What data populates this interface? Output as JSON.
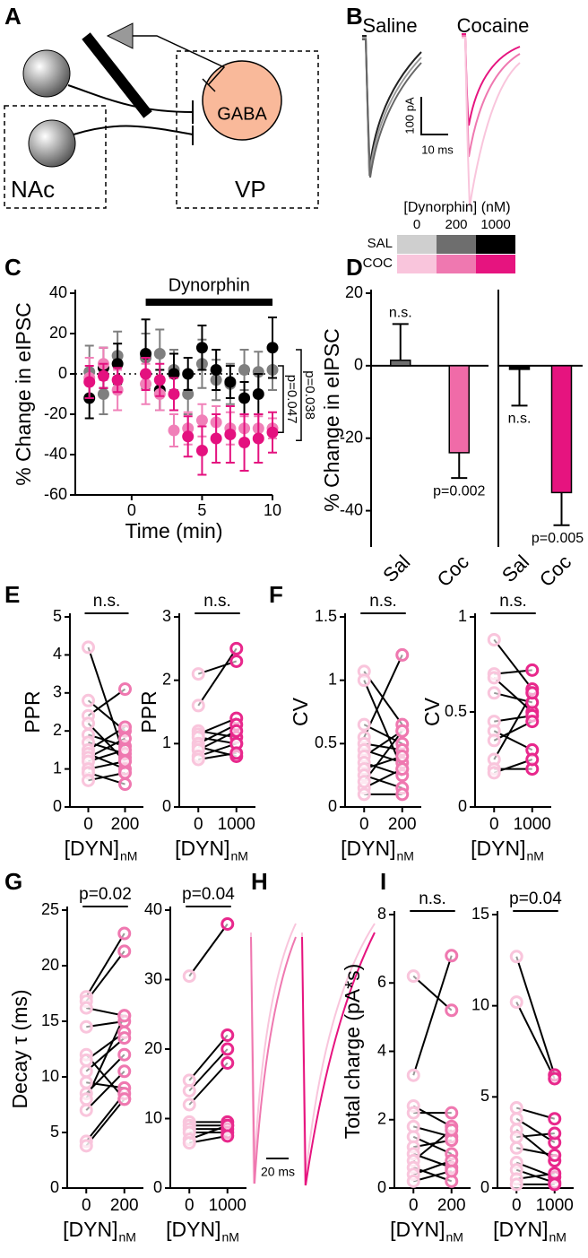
{
  "panel_letters": [
    "A",
    "B",
    "C",
    "D",
    "E",
    "F",
    "G",
    "H",
    "I"
  ],
  "diagram": {
    "gaba": "GABA",
    "nac": "NAc",
    "vp": "VP"
  },
  "traces": {
    "saline": "Saline",
    "cocaine": "Cocaine",
    "scale_y": "100 pA",
    "scale_x": "10 ms",
    "scale_h": "20 ms"
  },
  "legend_table": {
    "title": "[Dynorphin] (nM)",
    "columns": [
      "0",
      "200",
      "1000"
    ],
    "rows": [
      {
        "label": "SAL",
        "colors": [
          "#cfcfcf",
          "#6e6e6e",
          "#000000"
        ]
      },
      {
        "label": "COC",
        "colors": [
          "#f9c5dc",
          "#ef78b0",
          "#e6147f"
        ]
      }
    ]
  },
  "chart_data": [
    {
      "type": "scatter",
      "x_label": "Time (min)",
      "y_label": "% Change in eIPSC",
      "annotation": "Dynorphin",
      "p_values": [
        "p=0.047",
        "p=0.038"
      ],
      "x": [
        -3,
        -2,
        -1,
        1,
        2,
        3,
        4,
        5,
        6,
        7,
        8,
        9,
        10
      ],
      "xlim": [
        -4,
        10
      ],
      "xticks": [
        0,
        5,
        10
      ],
      "ylim": [
        -60,
        40
      ],
      "yticks": [
        -60,
        -40,
        -20,
        0,
        20,
        40
      ],
      "series": [
        {
          "color": "#7f7f7f",
          "values": [
            1,
            -10,
            9,
            8,
            10,
            2,
            -10,
            5,
            -3,
            -5,
            2,
            1,
            2
          ],
          "errors": [
            13,
            10,
            12,
            12,
            12,
            10,
            10,
            12,
            10,
            10,
            10,
            10,
            10
          ]
        },
        {
          "color": "#000000",
          "values": [
            -12,
            3,
            5,
            10,
            -8,
            0,
            0,
            13,
            2,
            -4,
            -12,
            -10,
            13
          ],
          "errors": [
            10,
            10,
            10,
            17,
            10,
            10,
            8,
            11,
            10,
            8,
            8,
            10,
            15
          ]
        },
        {
          "color": "#f080b8",
          "values": [
            -2,
            5,
            -8,
            -5,
            -10,
            -28,
            -27,
            -23,
            -24,
            -27,
            -27,
            -27,
            -27
          ],
          "errors": [
            10,
            8,
            10,
            10,
            8,
            8,
            8,
            8,
            8,
            8,
            6,
            6,
            5
          ]
        },
        {
          "color": "#e4117f",
          "values": [
            -4,
            -1,
            -3,
            0,
            -3,
            -10,
            -31,
            -38,
            -32,
            -30,
            -34,
            -32,
            -29
          ],
          "errors": [
            8,
            6,
            6,
            8,
            8,
            8,
            10,
            12,
            12,
            14,
            14,
            12,
            10
          ]
        }
      ]
    },
    {
      "type": "bar",
      "y_label": "% Change in eIPSC",
      "categories": [
        "Sal",
        "Coc"
      ],
      "values": [
        1.5,
        -24
      ],
      "errors": [
        10,
        7
      ],
      "colors": [
        "#6e6e6e",
        "#f06ba8"
      ],
      "annotations": [
        "n.s.",
        "p=0.002"
      ],
      "ylim": [
        -50,
        20
      ],
      "yticks": [
        -40,
        -20,
        0,
        20
      ]
    },
    {
      "type": "bar",
      "categories": [
        "Sal",
        "Coc"
      ],
      "values": [
        -1,
        -35
      ],
      "errors": [
        10,
        9
      ],
      "colors": [
        "#000000",
        "#e6147f"
      ],
      "annotations": [
        "n.s.",
        "p=0.005"
      ],
      "ylim": [
        -50,
        20
      ]
    },
    {
      "type": "paired",
      "y_label": "PPR",
      "x_label": "[DYN]",
      "x_label_sub": "nM",
      "categories": [
        "0",
        "200"
      ],
      "annotation": "n.s.",
      "colors": [
        "#f9c5dc",
        "#ef78b0"
      ],
      "ylim": [
        0,
        5
      ],
      "yticks": [
        0,
        1,
        2,
        3,
        4,
        5
      ],
      "series": [
        {
          "values": [
            4.2,
            1.3
          ]
        },
        {
          "values": [
            2.8,
            2.0
          ]
        },
        {
          "values": [
            2.4,
            3.1
          ]
        },
        {
          "values": [
            2.2,
            1.2
          ]
        },
        {
          "values": [
            1.9,
            1.6
          ]
        },
        {
          "values": [
            1.7,
            1.4
          ]
        },
        {
          "values": [
            1.5,
            2.1
          ]
        },
        {
          "values": [
            1.4,
            1.0
          ]
        },
        {
          "values": [
            1.3,
            1.8
          ]
        },
        {
          "values": [
            1.2,
            1.5
          ]
        },
        {
          "values": [
            1.0,
            1.2
          ]
        },
        {
          "values": [
            0.9,
            0.6
          ]
        },
        {
          "values": [
            0.7,
            0.9
          ]
        }
      ]
    },
    {
      "type": "paired",
      "y_label": "PPR",
      "x_label": "[DYN]",
      "x_label_sub": "nM",
      "categories": [
        "0",
        "1000"
      ],
      "annotation": "n.s.",
      "colors": [
        "#f9c5dc",
        "#e8288c"
      ],
      "ylim": [
        0,
        3
      ],
      "yticks": [
        0,
        1,
        2,
        3
      ],
      "series": [
        {
          "values": [
            2.1,
            2.3
          ]
        },
        {
          "values": [
            1.6,
            2.5
          ]
        },
        {
          "values": [
            1.2,
            1.1
          ]
        },
        {
          "values": [
            1.15,
            1.4
          ]
        },
        {
          "values": [
            1.1,
            1.0
          ]
        },
        {
          "values": [
            1.0,
            1.3
          ]
        },
        {
          "values": [
            0.95,
            0.8
          ]
        },
        {
          "values": [
            0.9,
            1.2
          ]
        },
        {
          "values": [
            0.8,
            1.0
          ]
        },
        {
          "values": [
            0.75,
            0.85
          ]
        }
      ]
    },
    {
      "type": "paired",
      "y_label": "CV",
      "x_label": "[DYN]",
      "x_label_sub": "nM",
      "categories": [
        "0",
        "200"
      ],
      "annotation": "n.s.",
      "colors": [
        "#f9c5dc",
        "#ef78b0"
      ],
      "ylim": [
        0,
        1.5
      ],
      "yticks": [
        0,
        0.5,
        1,
        1.5
      ],
      "series": [
        {
          "values": [
            1.07,
            0.65
          ]
        },
        {
          "values": [
            1.0,
            0.3
          ]
        },
        {
          "values": [
            0.65,
            0.5
          ]
        },
        {
          "values": [
            0.55,
            1.2
          ]
        },
        {
          "values": [
            0.5,
            0.45
          ]
        },
        {
          "values": [
            0.45,
            0.35
          ]
        },
        {
          "values": [
            0.4,
            0.6
          ]
        },
        {
          "values": [
            0.35,
            0.25
          ]
        },
        {
          "values": [
            0.3,
            0.4
          ]
        },
        {
          "values": [
            0.25,
            0.15
          ]
        },
        {
          "values": [
            0.15,
            0.3
          ]
        },
        {
          "values": [
            0.1,
            0.1
          ]
        },
        {
          "values": [
            0.2,
            0.6
          ]
        }
      ]
    },
    {
      "type": "paired",
      "y_label": "CV",
      "x_label": "[DYN]",
      "x_label_sub": "nM",
      "categories": [
        "0",
        "1000"
      ],
      "annotation": "n.s.",
      "colors": [
        "#f9c5dc",
        "#e8288c"
      ],
      "ylim": [
        0,
        1
      ],
      "yticks": [
        0,
        0.5,
        1
      ],
      "series": [
        {
          "values": [
            0.88,
            0.62
          ]
        },
        {
          "values": [
            0.7,
            0.72
          ]
        },
        {
          "values": [
            0.68,
            0.5
          ]
        },
        {
          "values": [
            0.6,
            0.55
          ]
        },
        {
          "values": [
            0.45,
            0.48
          ]
        },
        {
          "values": [
            0.4,
            0.3
          ]
        },
        {
          "values": [
            0.35,
            0.45
          ]
        },
        {
          "values": [
            0.25,
            0.6
          ]
        },
        {
          "values": [
            0.2,
            0.2
          ]
        },
        {
          "values": [
            0.18,
            0.25
          ]
        }
      ]
    },
    {
      "type": "paired",
      "y_label": "Decay τ (ms)",
      "x_label": "[DYN]",
      "x_label_sub": "nM",
      "categories": [
        "0",
        "200"
      ],
      "annotation": "p=0.02",
      "colors": [
        "#f9c5dc",
        "#ef78b0"
      ],
      "ylim": [
        0,
        25
      ],
      "yticks": [
        0,
        5,
        10,
        15,
        20,
        25
      ],
      "series": [
        {
          "values": [
            17.2,
            22.9
          ]
        },
        {
          "values": [
            16.8,
            21.3
          ]
        },
        {
          "values": [
            16.2,
            15.5
          ]
        },
        {
          "values": [
            14.5,
            15
          ]
        },
        {
          "values": [
            12,
            8
          ]
        },
        {
          "values": [
            11.5,
            14
          ]
        },
        {
          "values": [
            10.5,
            13.5
          ]
        },
        {
          "values": [
            9.5,
            9
          ]
        },
        {
          "values": [
            8.5,
            12
          ]
        },
        {
          "values": [
            8,
            15.5
          ]
        },
        {
          "values": [
            4.2,
            8.5
          ]
        },
        {
          "values": [
            3.8,
            8
          ]
        },
        {
          "values": [
            7,
            10.5
          ]
        }
      ]
    },
    {
      "type": "paired",
      "x_label": "[DYN]",
      "x_label_sub": "nM",
      "categories": [
        "0",
        "1000"
      ],
      "annotation": "p=0.04",
      "colors": [
        "#f9c5dc",
        "#e8288c"
      ],
      "ylim": [
        0,
        40
      ],
      "yticks": [
        0,
        10,
        20,
        30,
        40
      ],
      "series": [
        {
          "values": [
            30.5,
            38
          ]
        },
        {
          "values": [
            15.5,
            22
          ]
        },
        {
          "values": [
            14,
            20
          ]
        },
        {
          "values": [
            12,
            18
          ]
        },
        {
          "values": [
            9.5,
            9.5
          ]
        },
        {
          "values": [
            9,
            9
          ]
        },
        {
          "values": [
            8.5,
            8.5
          ]
        },
        {
          "values": [
            8,
            8
          ]
        },
        {
          "values": [
            7,
            9
          ]
        },
        {
          "values": [
            6.5,
            7.5
          ]
        }
      ]
    },
    {
      "type": "paired",
      "y_label": "Total charge (pA*s)",
      "x_label": "[DYN]",
      "x_label_sub": "nM",
      "categories": [
        "0",
        "200"
      ],
      "annotation": "n.s.",
      "colors": [
        "#f9c5dc",
        "#ef78b0"
      ],
      "ylim": [
        0,
        8
      ],
      "yticks": [
        0,
        2,
        4,
        6,
        8
      ],
      "series": [
        {
          "values": [
            6.2,
            5.2
          ]
        },
        {
          "values": [
            3.3,
            6.8
          ]
        },
        {
          "values": [
            2.4,
            1.8
          ]
        },
        {
          "values": [
            2.2,
            2.2
          ]
        },
        {
          "values": [
            1.8,
            1.5
          ]
        },
        {
          "values": [
            1.5,
            1.0
          ]
        },
        {
          "values": [
            1.2,
            1.4
          ]
        },
        {
          "values": [
            1.0,
            0.6
          ]
        },
        {
          "values": [
            0.8,
            1.7
          ]
        },
        {
          "values": [
            0.6,
            0.2
          ]
        },
        {
          "values": [
            0.4,
            0.8
          ]
        },
        {
          "values": [
            0.2,
            0.5
          ]
        }
      ]
    },
    {
      "type": "paired",
      "x_label": "[DYN]",
      "x_label_sub": "nM",
      "categories": [
        "0",
        "1000"
      ],
      "annotation": "p=0.04",
      "colors": [
        "#f9c5dc",
        "#e8288c"
      ],
      "ylim": [
        0,
        15
      ],
      "yticks": [
        0,
        5,
        10,
        15
      ],
      "series": [
        {
          "values": [
            12.7,
            6.2
          ]
        },
        {
          "values": [
            10.2,
            6.0
          ]
        },
        {
          "values": [
            4.4,
            3.8
          ]
        },
        {
          "values": [
            3.8,
            2.5
          ]
        },
        {
          "values": [
            3.2,
            1.5
          ]
        },
        {
          "values": [
            2.8,
            3.0
          ]
        },
        {
          "values": [
            2.2,
            1.8
          ]
        },
        {
          "values": [
            1.4,
            0.6
          ]
        },
        {
          "values": [
            1.0,
            0.3
          ]
        },
        {
          "values": [
            0.5,
            0.8
          ]
        },
        {
          "values": [
            0.2,
            0.2
          ]
        }
      ]
    }
  ]
}
